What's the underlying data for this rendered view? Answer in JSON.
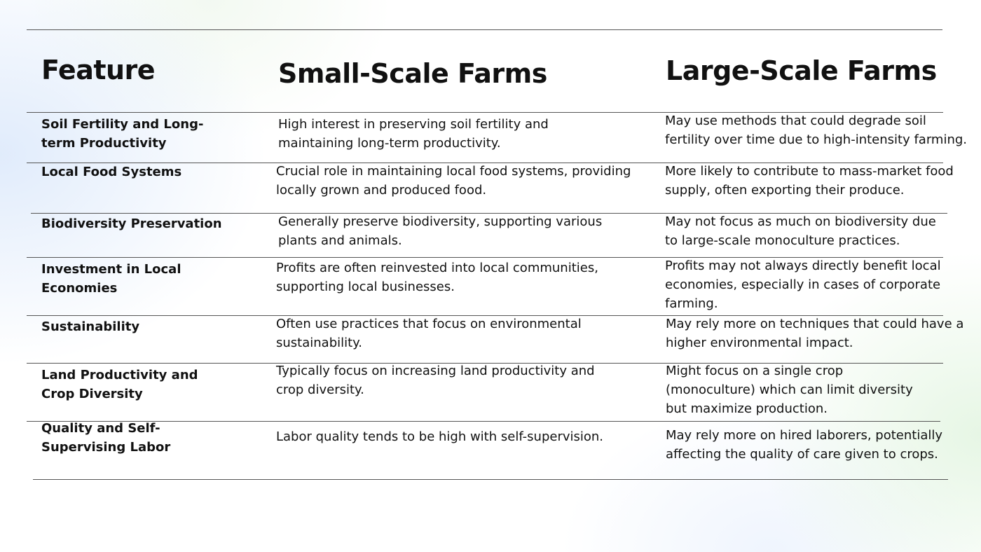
{
  "headers": {
    "feature": "Feature",
    "small": "Small-Scale Farms",
    "large": "Large-Scale Farms"
  },
  "rows": [
    {
      "feature": "Soil Fertility and Long-term Productivity",
      "small": "High interest in preserving soil fertility and maintaining long-term productivity.",
      "large": "May use methods that could degrade soil fertility over time due to high-intensity farming."
    },
    {
      "feature": "Local Food Systems",
      "small": "Crucial role in maintaining local food systems, providing locally grown and produced food.",
      "large": "More likely to contribute to mass-market food supply, often exporting their produce."
    },
    {
      "feature": "Biodiversity Preservation",
      "small": "Generally preserve biodiversity, supporting various plants and animals.",
      "large": "May not focus as much on biodiversity due to large-scale monoculture practices."
    },
    {
      "feature": "Investment in Local Economies",
      "small": "Profits are often reinvested into local communities, supporting local businesses.",
      "large": "Profits may not always directly benefit local economies, especially in cases of corporate farming."
    },
    {
      "feature": "Sustainability",
      "small": "Often use practices that focus on environmental sustainability.",
      "large": "May rely more on techniques that could have a higher environmental impact."
    },
    {
      "feature": "Land Productivity and Crop Diversity",
      "small": "Typically focus on increasing land productivity and crop diversity.",
      "large": "Might focus on a single crop (monoculture) which can limit diversity but maximize production."
    },
    {
      "feature": "Quality and Self-Supervising Labor",
      "small": "Labor quality tends to be high with self-supervision.",
      "large": "May rely more on hired laborers, potentially affecting the quality of care given to crops."
    }
  ]
}
